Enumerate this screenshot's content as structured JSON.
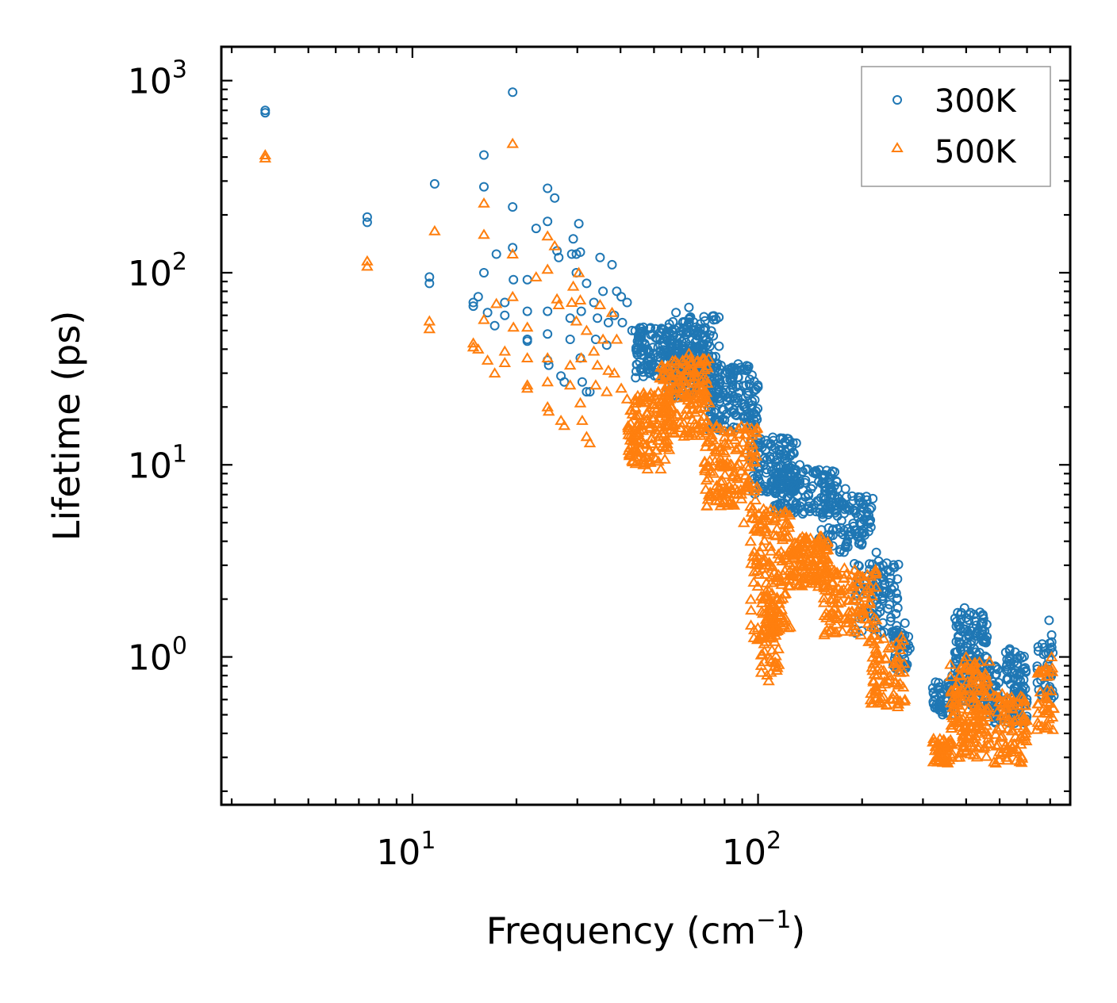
{
  "chart_data": {
    "type": "scatter",
    "title": "",
    "xlabel": "Frequency (cm⁻¹)",
    "xlabel_main": "Frequency (cm",
    "xlabel_sup": "−1",
    "xlabel_close": ")",
    "ylabel": "Lifetime (ps)",
    "xscale": "log",
    "yscale": "log",
    "xlim": [
      2.8,
      800
    ],
    "ylim": [
      0.17,
      1500
    ],
    "x_ticks": [
      {
        "base": "10",
        "exp": "1",
        "value": 10
      },
      {
        "base": "10",
        "exp": "2",
        "value": 100
      }
    ],
    "y_ticks": [
      {
        "base": "10",
        "exp": "0",
        "value": 1
      },
      {
        "base": "10",
        "exp": "1",
        "value": 10
      },
      {
        "base": "10",
        "exp": "2",
        "value": 100
      },
      {
        "base": "10",
        "exp": "3",
        "value": 1000
      }
    ],
    "legend_position": "top-right",
    "grid": false,
    "series": [
      {
        "name": "300K",
        "marker": "circle",
        "color": "#1f77b4",
        "points": [
          [
            3.75,
            700
          ],
          [
            3.75,
            680
          ],
          [
            7.4,
            195
          ],
          [
            7.4,
            183
          ],
          [
            11.2,
            95
          ],
          [
            11.2,
            88
          ],
          [
            11.6,
            290
          ],
          [
            15.0,
            70
          ],
          [
            15.0,
            67
          ],
          [
            15.5,
            75
          ],
          [
            16.1,
            410
          ],
          [
            16.1,
            280
          ],
          [
            16.1,
            100
          ],
          [
            16.5,
            62
          ],
          [
            17.3,
            53
          ],
          [
            17.5,
            125
          ],
          [
            18.5,
            70
          ],
          [
            18.5,
            60
          ],
          [
            19.5,
            870
          ],
          [
            19.5,
            220
          ],
          [
            19.5,
            135
          ],
          [
            19.6,
            92
          ],
          [
            21.5,
            63
          ],
          [
            21.5,
            45
          ],
          [
            21.5,
            44
          ],
          [
            21.5,
            92
          ],
          [
            22.8,
            170
          ],
          [
            24.6,
            275
          ],
          [
            24.6,
            185
          ],
          [
            24.6,
            63
          ],
          [
            24.6,
            48
          ],
          [
            24.6,
            35
          ],
          [
            24.8,
            33
          ],
          [
            25.8,
            245
          ],
          [
            26.2,
            130
          ],
          [
            26.5,
            120
          ],
          [
            26.9,
            29
          ],
          [
            27.5,
            27
          ],
          [
            28.6,
            58
          ],
          [
            28.6,
            45
          ],
          [
            28.9,
            125
          ],
          [
            29.2,
            150
          ],
          [
            29.8,
            100
          ],
          [
            29.8,
            125
          ],
          [
            30.3,
            180
          ],
          [
            30.8,
            63
          ],
          [
            30.6,
            128
          ],
          [
            30.6,
            36
          ],
          [
            31.0,
            27
          ],
          [
            31.9,
            88
          ],
          [
            31.9,
            24
          ],
          [
            32.6,
            24
          ],
          [
            33.5,
            70
          ],
          [
            33.9,
            45
          ],
          [
            34.3,
            58
          ],
          [
            34.9,
            120
          ],
          [
            35.6,
            80
          ],
          [
            36.5,
            42
          ],
          [
            36.9,
            55
          ],
          [
            37.8,
            110
          ],
          [
            38.4,
            60
          ],
          [
            39.0,
            80
          ],
          [
            40.2,
            75
          ],
          [
            40.5,
            55
          ],
          [
            41.8,
            70
          ],
          [
            43.2,
            50
          ],
          [
            44.8,
            44
          ],
          [
            46.6,
            52
          ],
          [
            47.9,
            40
          ],
          [
            49.8,
            38
          ],
          [
            52.3,
            36
          ],
          [
            55.3,
            48
          ],
          [
            57.9,
            62
          ],
          [
            60.5,
            55
          ],
          [
            63.1,
            66
          ],
          [
            65.4,
            50
          ],
          [
            68.6,
            40
          ],
          [
            72.3,
            35
          ],
          [
            75.8,
            32
          ],
          [
            80.2,
            30
          ],
          [
            83.8,
            27
          ],
          [
            87.6,
            26
          ],
          [
            91.0,
            20
          ],
          [
            95.2,
            16
          ],
          [
            100.4,
            13
          ],
          [
            105.3,
            12
          ],
          [
            109.4,
            12.5
          ],
          [
            115.4,
            12
          ],
          [
            120.5,
            13
          ],
          [
            126.2,
            13
          ],
          [
            132.0,
            10
          ],
          [
            139.0,
            9.5
          ],
          [
            146.4,
            9
          ],
          [
            154.0,
            8.5
          ],
          [
            161.5,
            7.5
          ],
          [
            170.1,
            7.5
          ],
          [
            179.0,
            7.5
          ],
          [
            188.5,
            6.5
          ],
          [
            198.6,
            5.5
          ],
          [
            208.9,
            4.5
          ],
          [
            219.8,
            3.5
          ],
          [
            231.1,
            2.7
          ],
          [
            242.2,
            2.1
          ],
          [
            253.7,
            1.8
          ],
          [
            266.0,
            1.5
          ],
          [
            337.0,
            0.65
          ],
          [
            364.6,
            0.8
          ],
          [
            395.7,
            1.8
          ],
          [
            400.0,
            1.6
          ],
          [
            438.6,
            0.9
          ],
          [
            487.4,
            0.6
          ],
          [
            534.8,
            1.1
          ],
          [
            582.5,
            0.6
          ],
          [
            695.1,
            1.55
          ],
          [
            707.1,
            1.3
          ]
        ],
        "bands": [
          {
            "x": [
              44,
              72
            ],
            "y": [
              28,
              52
            ],
            "n": 200
          },
          {
            "x": [
              55,
              78
            ],
            "y": [
              22,
              60
            ],
            "n": 140
          },
          {
            "x": [
              72,
              100
            ],
            "y": [
              15,
              34
            ],
            "n": 150
          },
          {
            "x": [
              95,
              130
            ],
            "y": [
              7,
              14
            ],
            "n": 120
          },
          {
            "x": [
              110,
              170
            ],
            "y": [
              5.5,
              9.5
            ],
            "n": 140
          },
          {
            "x": [
              150,
              215
            ],
            "y": [
              3.5,
              7
            ],
            "n": 110
          },
          {
            "x": [
              190,
              255
            ],
            "y": [
              1.3,
              3.2
            ],
            "n": 100
          },
          {
            "x": [
              245,
              275
            ],
            "y": [
              0.85,
              1.35
            ],
            "n": 40
          },
          {
            "x": [
              320,
              370
            ],
            "y": [
              0.5,
              0.75
            ],
            "n": 50
          },
          {
            "x": [
              370,
              460
            ],
            "y": [
              0.55,
              1.75
            ],
            "n": 170
          },
          {
            "x": [
              455,
              500
            ],
            "y": [
              0.45,
              0.95
            ],
            "n": 50
          },
          {
            "x": [
              520,
              600
            ],
            "y": [
              0.45,
              1.1
            ],
            "n": 90
          },
          {
            "x": [
              640,
              720
            ],
            "y": [
              0.6,
              1.2
            ],
            "n": 40
          }
        ]
      },
      {
        "name": "500K",
        "marker": "triangle",
        "color": "#ff7f0e",
        "points": [
          [
            3.75,
            410
          ],
          [
            3.75,
            395
          ],
          [
            7.4,
            115
          ],
          [
            7.4,
            108
          ],
          [
            11.2,
            56
          ],
          [
            11.2,
            51
          ],
          [
            11.6,
            165
          ],
          [
            15.0,
            43
          ],
          [
            15.0,
            41
          ],
          [
            15.5,
            40
          ],
          [
            16.1,
            230
          ],
          [
            16.1,
            158
          ],
          [
            16.1,
            57
          ],
          [
            16.5,
            35
          ],
          [
            17.3,
            30
          ],
          [
            17.5,
            69
          ],
          [
            18.5,
            39
          ],
          [
            18.5,
            34
          ],
          [
            19.5,
            470
          ],
          [
            19.5,
            125
          ],
          [
            19.5,
            75
          ],
          [
            19.6,
            52
          ],
          [
            21.5,
            36
          ],
          [
            21.5,
            26
          ],
          [
            21.5,
            25
          ],
          [
            21.5,
            52
          ],
          [
            22.8,
            95
          ],
          [
            24.6,
            155
          ],
          [
            24.6,
            104
          ],
          [
            24.6,
            36
          ],
          [
            24.6,
            27
          ],
          [
            24.6,
            20
          ],
          [
            24.8,
            19
          ],
          [
            25.8,
            138
          ],
          [
            26.2,
            73
          ],
          [
            26.5,
            68
          ],
          [
            26.9,
            17
          ],
          [
            27.5,
            16
          ],
          [
            28.6,
            33
          ],
          [
            28.6,
            26
          ],
          [
            28.9,
            70
          ],
          [
            29.2,
            85
          ],
          [
            29.8,
            56
          ],
          [
            30.3,
            100
          ],
          [
            30.8,
            36
          ],
          [
            30.6,
            72
          ],
          [
            30.6,
            21
          ],
          [
            31.0,
            17
          ],
          [
            31.9,
            50
          ],
          [
            31.9,
            14
          ],
          [
            32.6,
            13
          ],
          [
            33.5,
            39
          ],
          [
            33.9,
            26
          ],
          [
            34.3,
            33
          ],
          [
            34.9,
            68
          ],
          [
            35.6,
            45
          ],
          [
            36.5,
            24
          ],
          [
            36.9,
            31
          ],
          [
            37.8,
            62
          ],
          [
            38.4,
            30
          ],
          [
            39.0,
            45
          ],
          [
            40.2,
            25
          ],
          [
            41.8,
            22
          ],
          [
            43.2,
            14
          ],
          [
            44.8,
            11
          ],
          [
            46.6,
            10
          ],
          [
            47.9,
            9.5
          ],
          [
            52.3,
            9.5
          ],
          [
            55.3,
            12
          ],
          [
            57.9,
            30
          ],
          [
            60.5,
            35
          ],
          [
            63.1,
            38
          ],
          [
            65.4,
            30
          ],
          [
            68.6,
            25
          ],
          [
            72.3,
            21
          ],
          [
            75.8,
            16
          ],
          [
            80.2,
            13
          ],
          [
            83.8,
            10
          ],
          [
            87.6,
            7
          ],
          [
            91.0,
            5
          ],
          [
            95.2,
            4
          ],
          [
            100.4,
            3
          ],
          [
            103.3,
            2
          ],
          [
            105.3,
            1.5
          ],
          [
            107.4,
            0.75
          ],
          [
            109.4,
            0.95
          ],
          [
            115.4,
            1.5
          ],
          [
            120.5,
            2.5
          ],
          [
            126.2,
            3.3
          ],
          [
            132.0,
            3.5
          ],
          [
            139.0,
            3.5
          ],
          [
            146.4,
            3
          ],
          [
            154.0,
            2.5
          ],
          [
            161.5,
            2.2
          ],
          [
            170.1,
            1.9
          ],
          [
            179.0,
            1.6
          ],
          [
            188.5,
            1.4
          ],
          [
            198.6,
            1.3
          ],
          [
            208.9,
            1.2
          ],
          [
            219.8,
            1.05
          ],
          [
            231.1,
            0.85
          ],
          [
            242.2,
            0.6
          ],
          [
            253.7,
            0.55
          ],
          [
            266.0,
            0.6
          ],
          [
            337.0,
            0.33
          ],
          [
            364.6,
            0.3
          ],
          [
            395.7,
            0.95
          ],
          [
            400.0,
            1.0
          ],
          [
            438.6,
            0.55
          ],
          [
            487.4,
            0.28
          ],
          [
            534.8,
            0.6
          ],
          [
            582.5,
            0.5
          ],
          [
            695.1,
            0.85
          ],
          [
            707.1,
            1.0
          ]
        ],
        "bands": [
          {
            "x": [
              42,
              55
            ],
            "y": [
              10,
              24
            ],
            "n": 130
          },
          {
            "x": [
              52,
              72
            ],
            "y": [
              14,
              36
            ],
            "n": 180
          },
          {
            "x": [
              70,
              100
            ],
            "y": [
              6,
              16
            ],
            "n": 150
          },
          {
            "x": [
              95,
              125
            ],
            "y": [
              1.2,
              6
            ],
            "n": 150
          },
          {
            "x": [
              102,
              115
            ],
            "y": [
              0.8,
              2.2
            ],
            "n": 60
          },
          {
            "x": [
              120,
              160
            ],
            "y": [
              2.3,
              4.3
            ],
            "n": 130
          },
          {
            "x": [
              155,
              220
            ],
            "y": [
              1.3,
              2.9
            ],
            "n": 120
          },
          {
            "x": [
              210,
              265
            ],
            "y": [
              0.55,
              1.3
            ],
            "n": 80
          },
          {
            "x": [
              320,
              360
            ],
            "y": [
              0.28,
              0.38
            ],
            "n": 50
          },
          {
            "x": [
              360,
              470
            ],
            "y": [
              0.3,
              0.95
            ],
            "n": 170
          },
          {
            "x": [
              480,
              600
            ],
            "y": [
              0.28,
              0.65
            ],
            "n": 90
          },
          {
            "x": [
              640,
              720
            ],
            "y": [
              0.4,
              0.9
            ],
            "n": 40
          }
        ]
      }
    ]
  }
}
